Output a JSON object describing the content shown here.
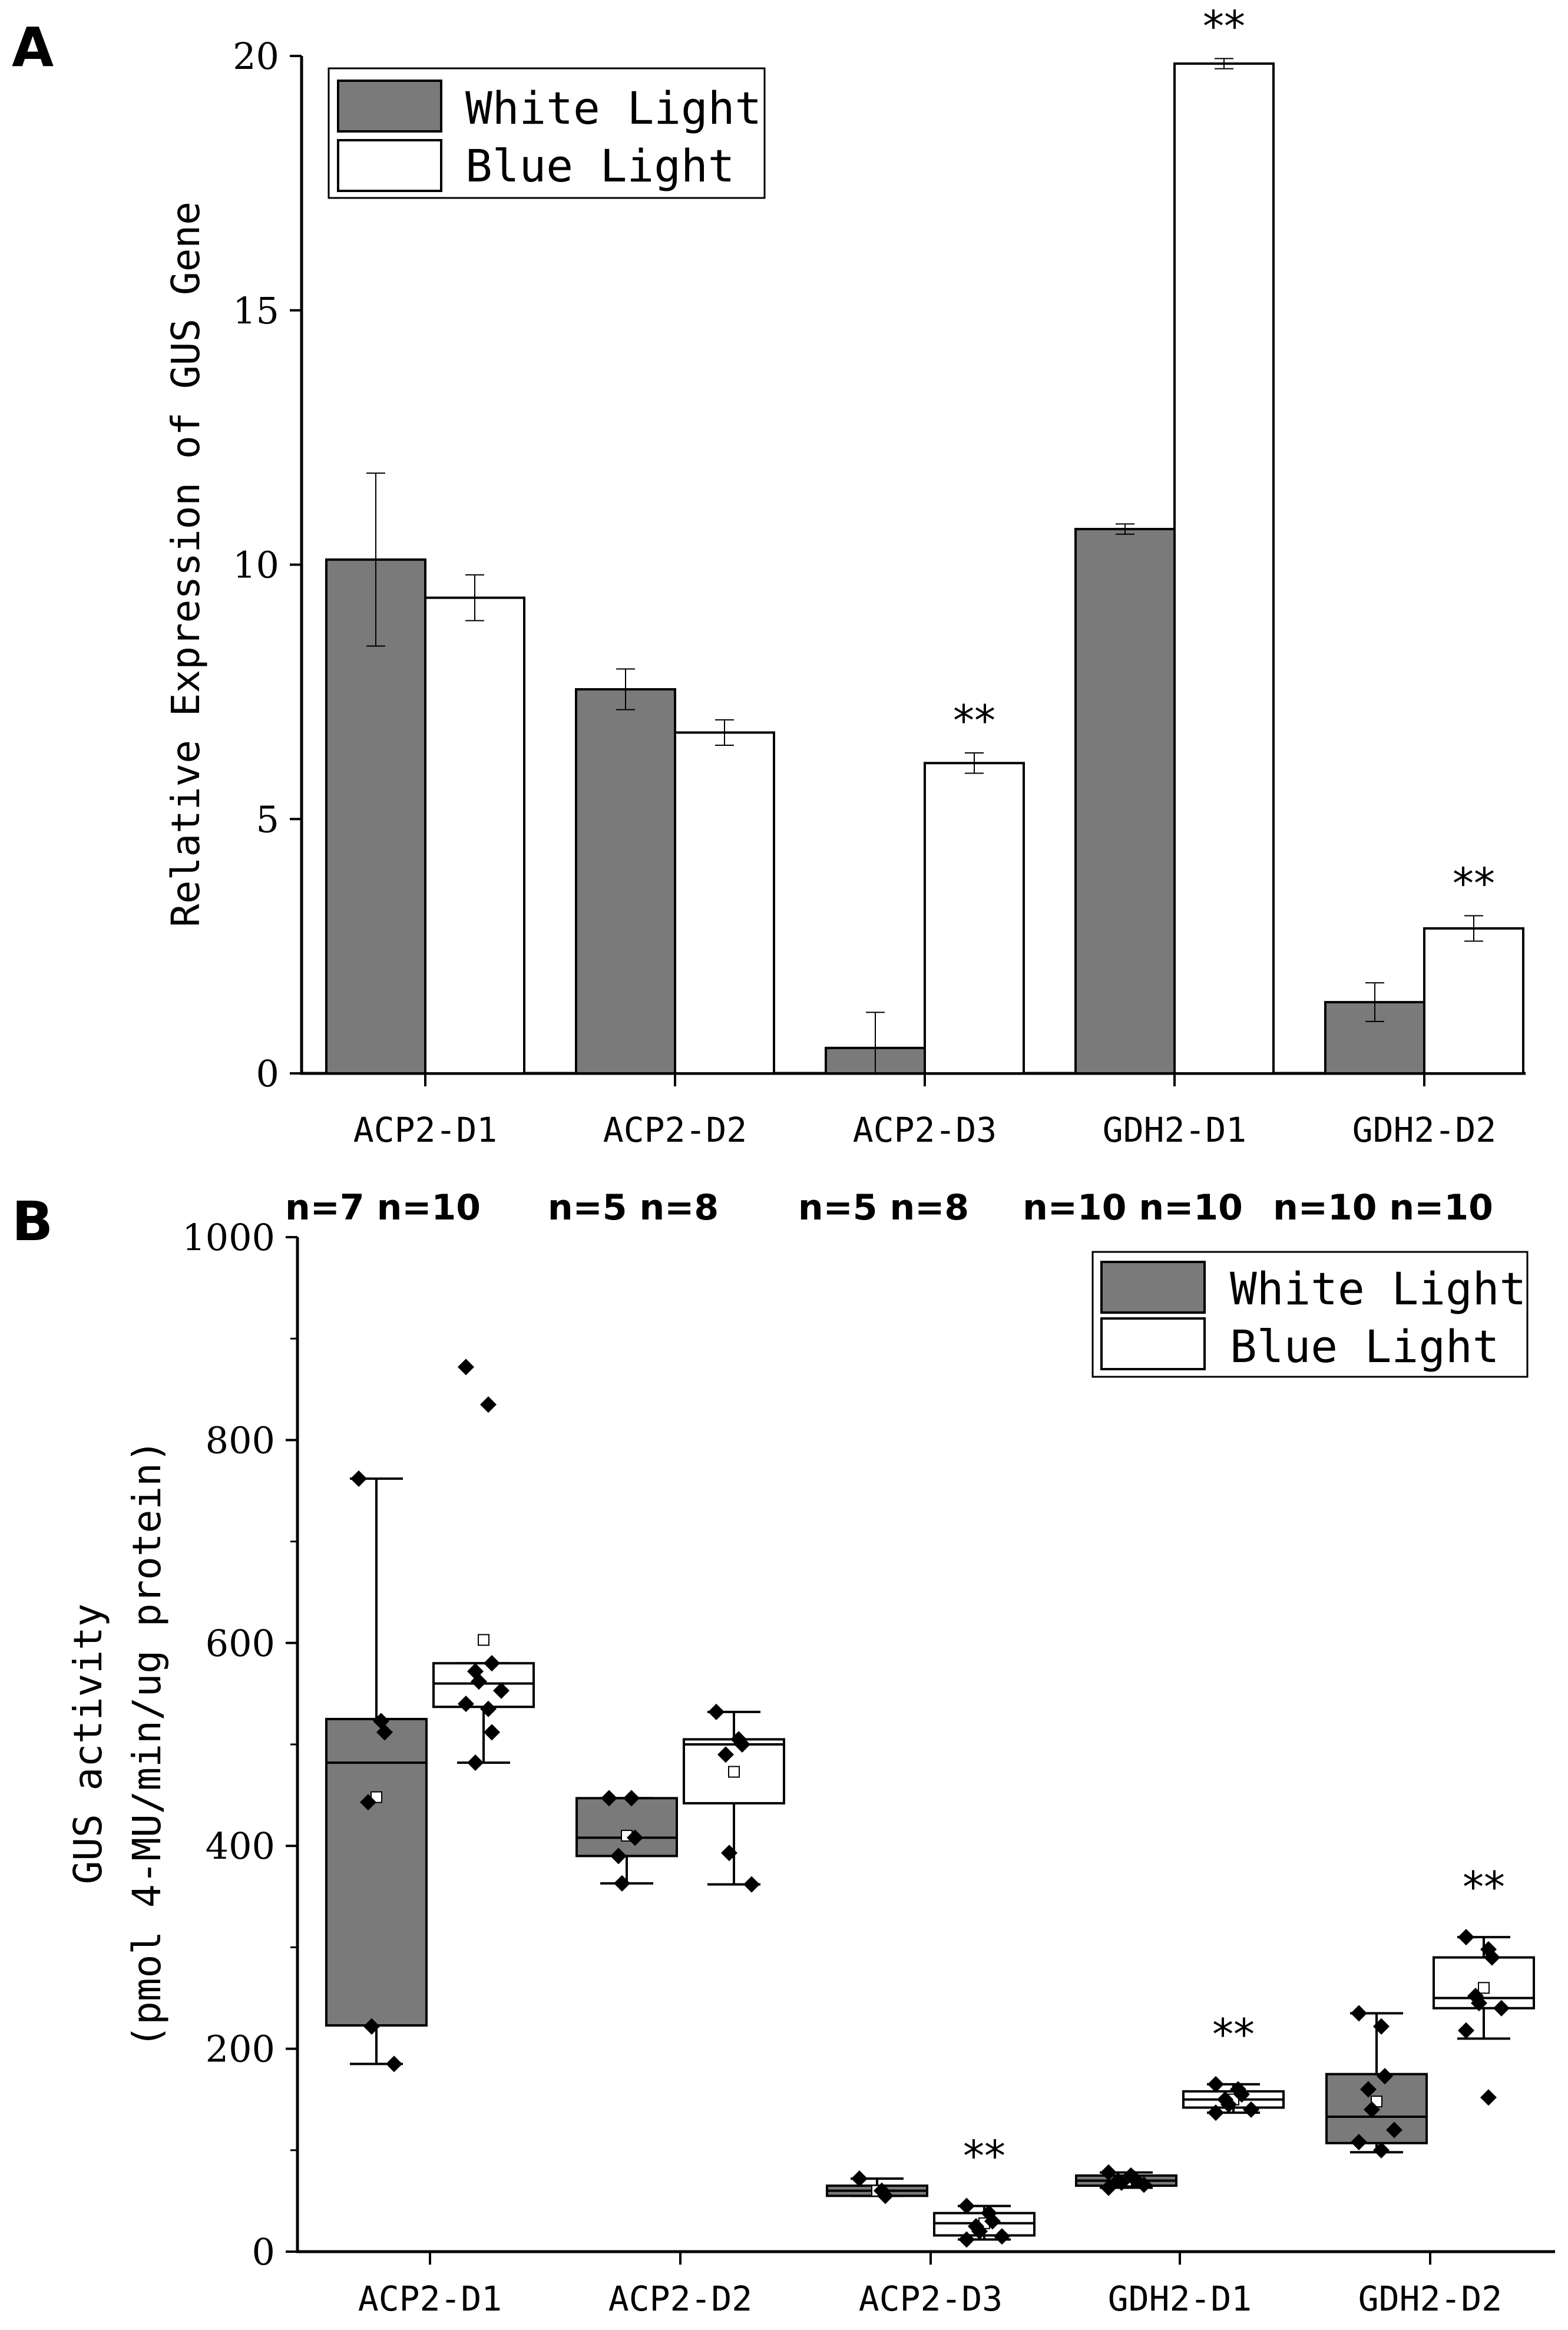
{
  "colors": {
    "white_light": "#7a7a7a",
    "blue_light": "#ffffff",
    "stroke": "#000000"
  },
  "chart_data": [
    {
      "panel": "A",
      "type": "bar",
      "ylabel": "Relative Expression of GUS Gene",
      "xlabel": "",
      "ylim": [
        0,
        20
      ],
      "yticks": [
        "0",
        "5",
        "10",
        "15",
        "20"
      ],
      "categories": [
        "ACP2-D1",
        "ACP2-D2",
        "ACP2-D3",
        "GDH2-D1",
        "GDH2-D2"
      ],
      "legend": {
        "position": "top-left",
        "entries": [
          "White Light",
          "Blue Light"
        ]
      },
      "series": [
        {
          "name": "White Light",
          "values": [
            10.1,
            7.55,
            0.5,
            10.7,
            1.4
          ],
          "errors": [
            1.7,
            0.4,
            0.7,
            0.1,
            0.38
          ]
        },
        {
          "name": "Blue Light",
          "values": [
            9.35,
            6.7,
            6.1,
            19.85,
            2.85
          ],
          "errors": [
            0.45,
            0.25,
            0.2,
            0.1,
            0.25
          ]
        }
      ],
      "annotations": [
        {
          "category": "ACP2-D3",
          "series": "Blue Light",
          "text": "**"
        },
        {
          "category": "GDH2-D1",
          "series": "Blue Light",
          "text": "**"
        },
        {
          "category": "GDH2-D2",
          "series": "Blue Light",
          "text": "**"
        }
      ]
    },
    {
      "panel": "B",
      "type": "box",
      "ylabel_line1": "GUS activity",
      "ylabel_line2": "(pmol 4-MU/min/ug protein)",
      "xlabel": "",
      "ylim": [
        0,
        1000
      ],
      "yticks": [
        "0",
        "200",
        "400",
        "600",
        "800",
        "1000"
      ],
      "categories": [
        "ACP2-D1",
        "ACP2-D2",
        "ACP2-D3",
        "GDH2-D1",
        "GDH2-D2"
      ],
      "sample_sizes": [
        "n=7 n=10",
        "n=5 n=8",
        "n=5 n=8",
        "n=10 n=10",
        "n=10 n=10"
      ],
      "legend": {
        "position": "top-right",
        "entries": [
          "White Light",
          "Blue Light"
        ]
      },
      "series": [
        {
          "name": "White Light",
          "boxes": [
            {
              "min": 185,
              "q1": 223,
              "median": 482,
              "q3": 525,
              "max": 762,
              "mean": 448,
              "points": [
                762,
                523,
                512,
                443,
                222,
                185
              ]
            },
            {
              "min": 363,
              "q1": 390,
              "median": 408,
              "q3": 447,
              "max": 447,
              "mean": 410,
              "points": [
                447,
                447,
                408,
                390,
                363
              ]
            },
            {
              "min": 55,
              "q1": 55,
              "median": 60,
              "q3": 65,
              "max": 72,
              "mean": 60,
              "points": [
                72,
                60,
                55
              ]
            },
            {
              "min": 63,
              "q1": 65,
              "median": 70,
              "q3": 75,
              "max": 78,
              "mean": 70,
              "points": [
                78,
                75,
                72,
                70,
                68,
                66,
                63
              ]
            },
            {
              "min": 98,
              "q1": 107,
              "median": 133,
              "q3": 175,
              "max": 235,
              "mean": 148,
              "points": [
                235,
                222,
                173,
                160,
                140,
                120,
                108,
                100
              ]
            }
          ]
        },
        {
          "name": "Blue Light",
          "boxes": [
            {
              "min": 482,
              "q1": 537,
              "median": 560,
              "q3": 580,
              "max": 580,
              "mean": 603,
              "points": [
                872,
                835,
                580,
                572,
                562,
                553,
                540,
                535,
                512,
                482
              ]
            },
            {
              "min": 362,
              "q1": 442,
              "median": 500,
              "q3": 505,
              "max": 532,
              "mean": 473,
              "points": [
                532,
                505,
                500,
                490,
                393,
                362
              ]
            },
            {
              "min": 12,
              "q1": 16,
              "median": 28,
              "q3": 38,
              "max": 45,
              "mean": 28,
              "points": [
                45,
                38,
                30,
                25,
                20,
                15,
                12
              ]
            },
            {
              "min": 137,
              "q1": 142,
              "median": 150,
              "q3": 158,
              "max": 165,
              "mean": 150,
              "points": [
                165,
                160,
                155,
                150,
                145,
                140,
                137
              ]
            },
            {
              "min": 210,
              "q1": 240,
              "median": 250,
              "q3": 290,
              "max": 310,
              "mean": 260,
              "points": [
                310,
                298,
                290,
                252,
                245,
                240,
                218,
                152
              ]
            }
          ]
        }
      ],
      "annotations": [
        {
          "category": "ACP2-D3",
          "series": "Blue Light",
          "text": "**"
        },
        {
          "category": "GDH2-D1",
          "series": "Blue Light",
          "text": "**"
        },
        {
          "category": "GDH2-D2",
          "series": "Blue Light",
          "text": "**"
        }
      ]
    }
  ]
}
